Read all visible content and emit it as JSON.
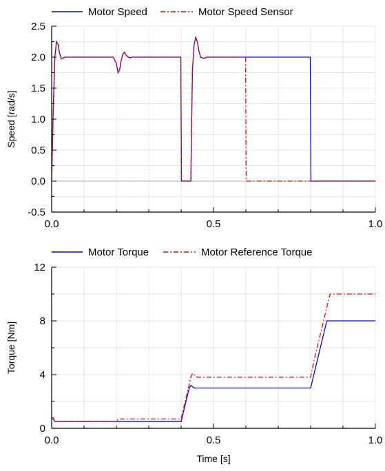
{
  "chart_data": [
    {
      "type": "line",
      "ylabel": "Speed [rad/s]",
      "xlim": [
        0,
        1.0
      ],
      "ylim": [
        -0.5,
        2.5
      ],
      "xticks": [
        "0.0",
        "0.5",
        "1.0"
      ],
      "yticks": [
        "-0.5",
        "0.0",
        "0.5",
        "1.0",
        "1.5",
        "2.0",
        "2.5"
      ],
      "grid": true,
      "legend_position": "top-left",
      "series": [
        {
          "name": "Motor Speed",
          "color": "#0000ff",
          "style": "solid",
          "x": [
            0,
            0.005,
            0.01,
            0.015,
            0.02,
            0.025,
            0.03,
            0.04,
            0.05,
            0.19,
            0.2,
            0.205,
            0.21,
            0.215,
            0.22,
            0.225,
            0.23,
            0.24,
            0.25,
            0.399,
            0.4,
            0.401,
            0.43,
            0.432,
            0.435,
            0.44,
            0.445,
            0.45,
            0.455,
            0.46,
            0.47,
            0.48,
            0.5,
            0.799,
            0.8,
            0.801,
            1.0
          ],
          "y": [
            0.0,
            1.2,
            2.0,
            2.25,
            2.2,
            2.05,
            1.97,
            2.0,
            2.0,
            2.0,
            1.9,
            1.75,
            1.8,
            1.95,
            2.05,
            2.08,
            2.03,
            1.99,
            2.0,
            2.0,
            1.0,
            0.0,
            0.0,
            0.8,
            1.8,
            2.2,
            2.32,
            2.25,
            2.1,
            2.0,
            1.98,
            2.0,
            2.0,
            2.0,
            1.0,
            0.0,
            0.0
          ]
        },
        {
          "name": "Motor Speed Sensor",
          "color": "#ff0000",
          "style": "dashdot",
          "x": [
            0,
            0.005,
            0.01,
            0.015,
            0.02,
            0.025,
            0.03,
            0.04,
            0.05,
            0.19,
            0.2,
            0.205,
            0.21,
            0.215,
            0.22,
            0.225,
            0.23,
            0.24,
            0.25,
            0.399,
            0.4,
            0.401,
            0.43,
            0.432,
            0.435,
            0.44,
            0.445,
            0.45,
            0.455,
            0.46,
            0.47,
            0.48,
            0.5,
            0.599,
            0.6,
            0.601,
            1.0
          ],
          "y": [
            0.0,
            1.1,
            2.0,
            2.25,
            2.2,
            2.05,
            1.97,
            2.0,
            2.0,
            2.0,
            1.9,
            1.75,
            1.8,
            1.95,
            2.05,
            2.08,
            2.03,
            1.99,
            2.0,
            2.0,
            1.0,
            0.0,
            0.0,
            0.8,
            1.8,
            2.2,
            2.32,
            2.25,
            2.1,
            2.0,
            1.98,
            2.0,
            2.0,
            2.0,
            1.0,
            0.0,
            0.0
          ]
        }
      ]
    },
    {
      "type": "line",
      "xlabel": "Time [s]",
      "ylabel": "Torque [Nm]",
      "xlim": [
        0,
        1.0
      ],
      "ylim": [
        0,
        12
      ],
      "xticks": [
        "0.0",
        "0.5",
        "1.0"
      ],
      "yticks": [
        "0",
        "4",
        "8",
        "12"
      ],
      "grid": true,
      "legend_position": "top-left",
      "series": [
        {
          "name": "Motor Torque",
          "color": "#0000ff",
          "style": "solid",
          "x": [
            0,
            0.005,
            0.01,
            0.015,
            0.2,
            0.201,
            0.4,
            0.425,
            0.43,
            0.435,
            0.44,
            0.8,
            0.81,
            0.85,
            1.0
          ],
          "y": [
            0.7,
            0.7,
            0.5,
            0.5,
            0.5,
            0.5,
            0.5,
            3.0,
            3.2,
            3.1,
            3.0,
            3.0,
            4.0,
            8.0,
            8.0
          ]
        },
        {
          "name": "Motor Reference Torque",
          "color": "#ff0000",
          "style": "dashdot",
          "x": [
            0,
            0.005,
            0.01,
            0.015,
            0.2,
            0.205,
            0.4,
            0.43,
            0.435,
            0.44,
            0.45,
            0.8,
            0.81,
            0.86,
            1.0
          ],
          "y": [
            0.8,
            0.8,
            0.5,
            0.5,
            0.5,
            0.7,
            0.7,
            3.8,
            4.1,
            4.0,
            3.8,
            3.8,
            5.0,
            10.0,
            10.0
          ]
        }
      ]
    }
  ]
}
